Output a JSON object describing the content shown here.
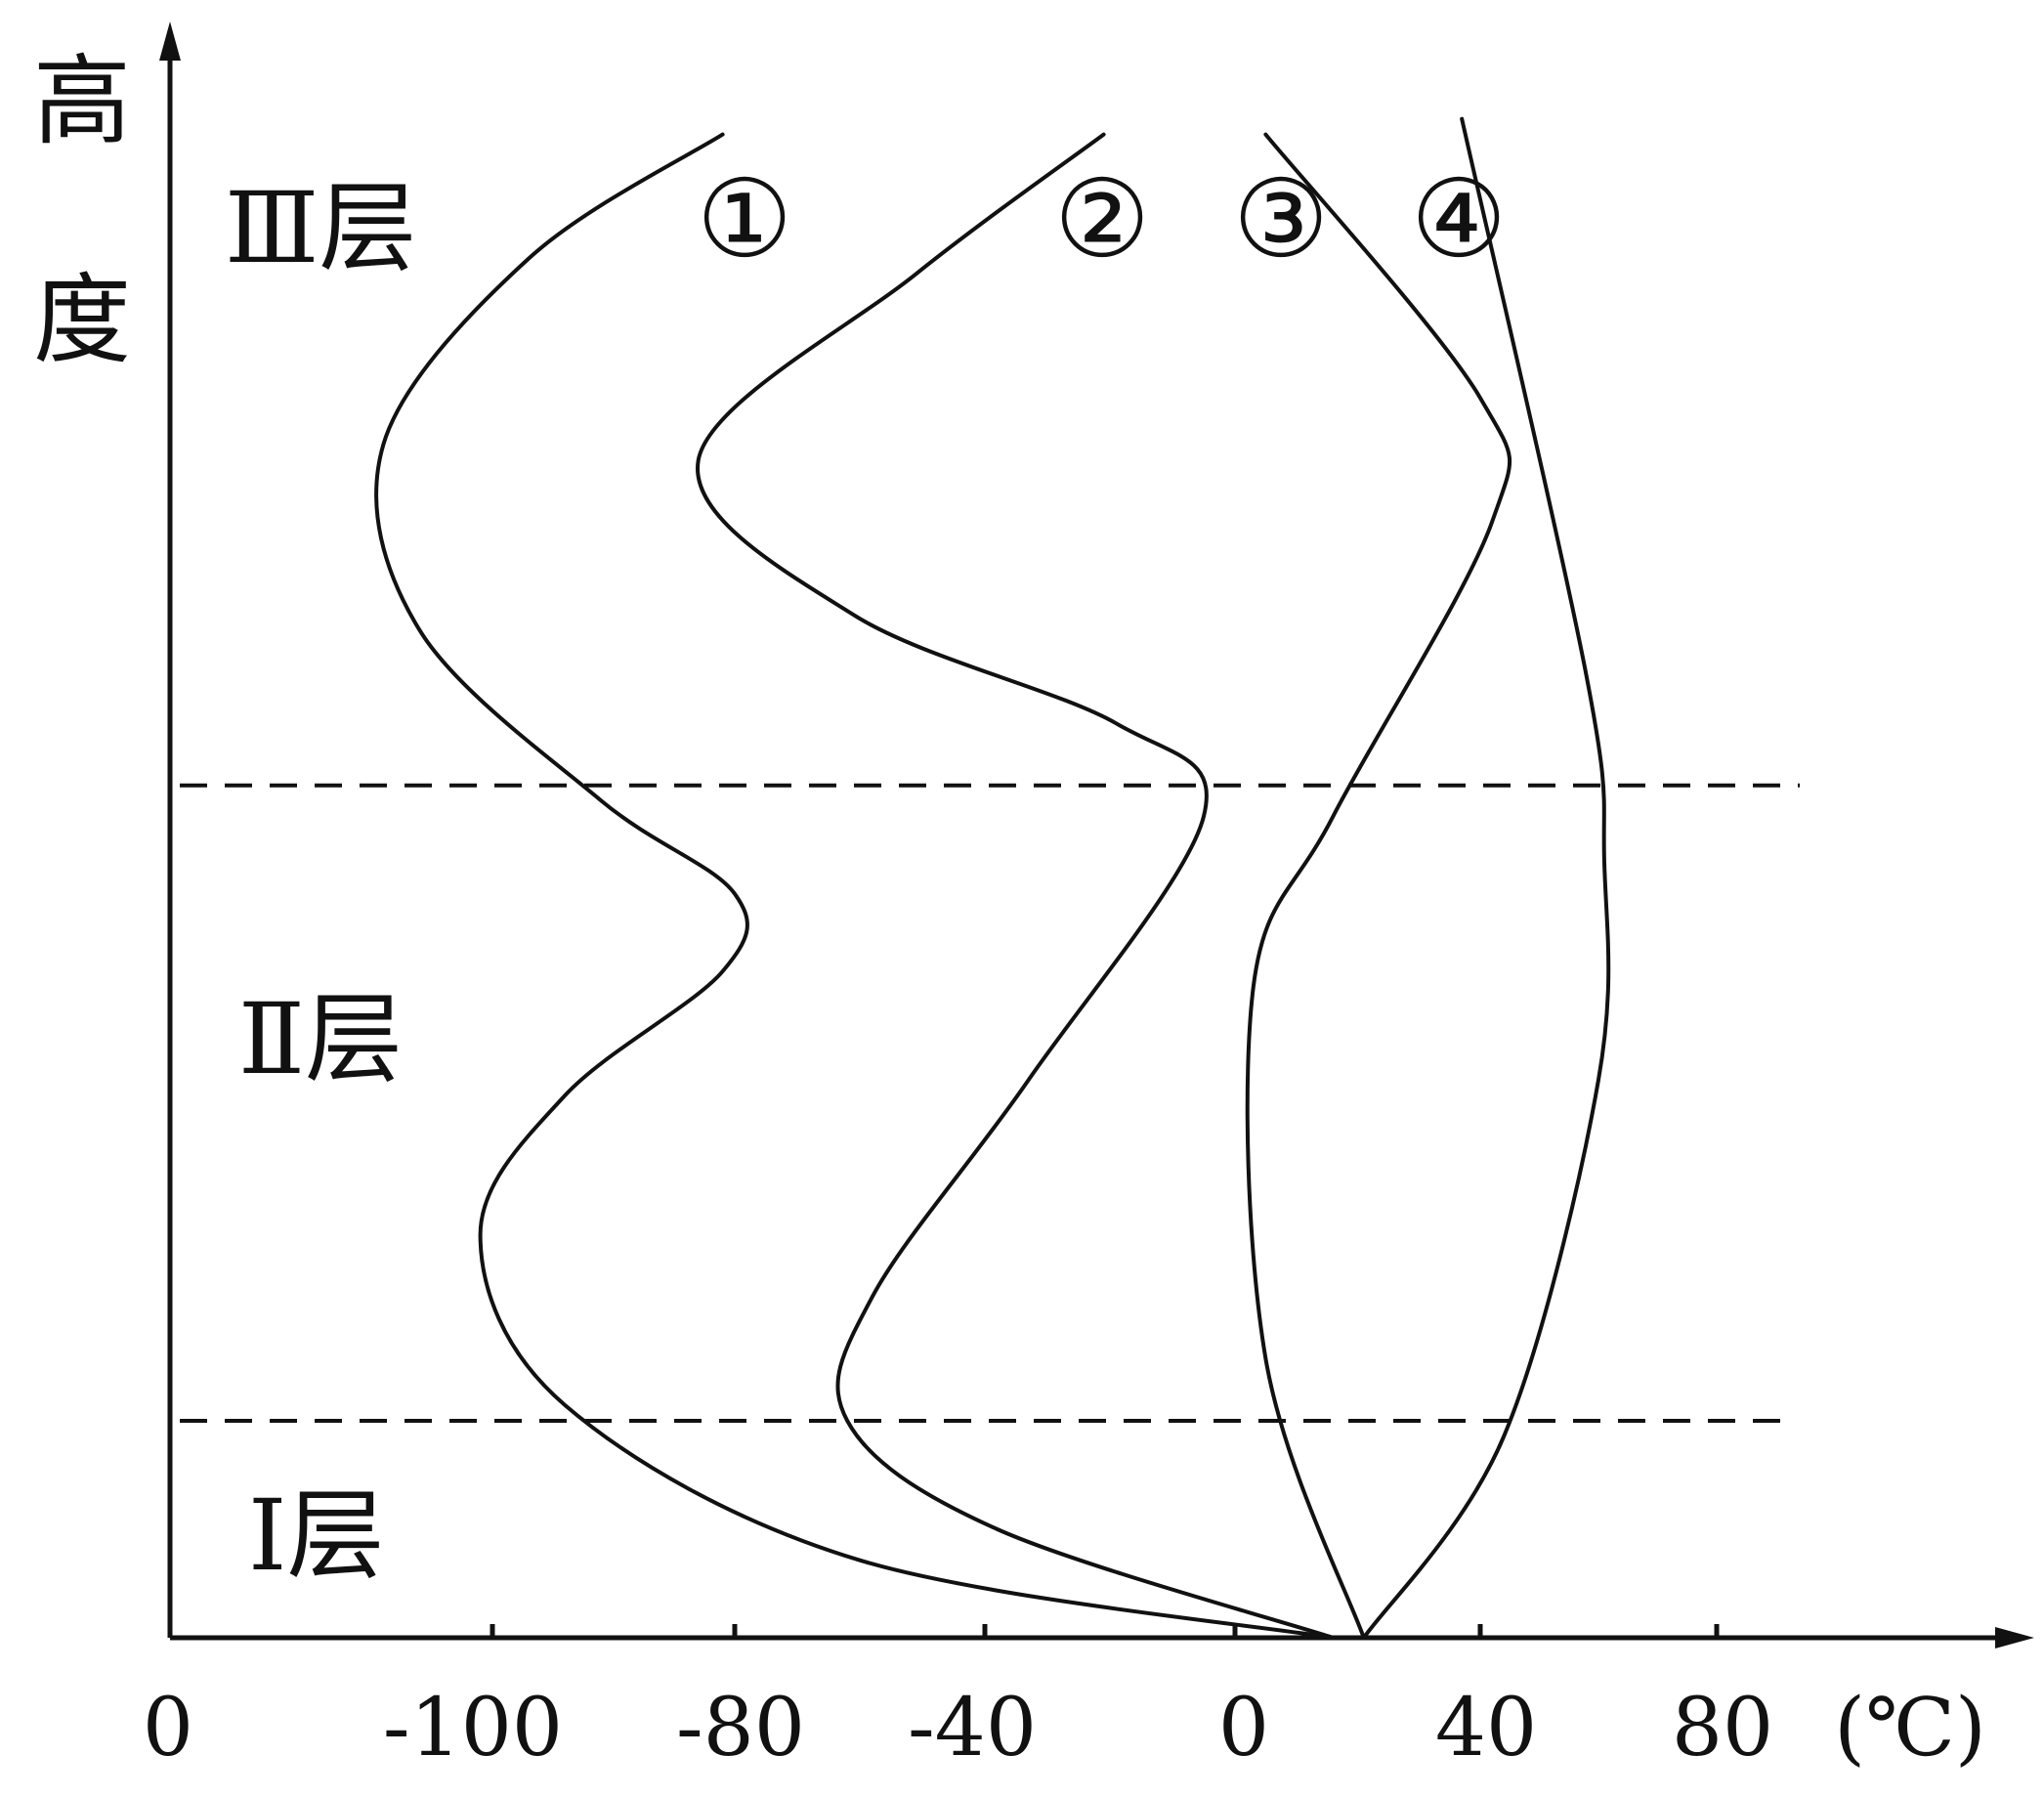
{
  "chart_data": {
    "type": "line",
    "ylabel": "高度",
    "xunit": "(℃)",
    "x_ticks": [
      "0",
      "-100",
      "-80",
      "-40",
      "0",
      "40",
      "80"
    ],
    "layers": [
      "Ⅲ层",
      "Ⅱ层",
      "Ⅰ层"
    ],
    "series_labels": [
      "①",
      "②",
      "③",
      "④"
    ],
    "series": [
      {
        "name": "①",
        "points": [
          {
            "x": 16,
            "y": 0.0
          },
          {
            "x": -60,
            "y": 0.05
          },
          {
            "x": -94,
            "y": 0.15
          },
          {
            "x": -101,
            "y": 0.26
          },
          {
            "x": -94,
            "y": 0.35
          },
          {
            "x": -81,
            "y": 0.43
          },
          {
            "x": -80,
            "y": 0.48
          },
          {
            "x": -91,
            "y": 0.54
          },
          {
            "x": -106,
            "y": 0.65
          },
          {
            "x": -109,
            "y": 0.77
          },
          {
            "x": -97,
            "y": 0.89
          },
          {
            "x": -81,
            "y": 0.97
          }
        ]
      },
      {
        "name": "②",
        "points": [
          {
            "x": 16,
            "y": 0.0
          },
          {
            "x": -38,
            "y": 0.07
          },
          {
            "x": -62,
            "y": 0.14
          },
          {
            "x": -58,
            "y": 0.22
          },
          {
            "x": -33,
            "y": 0.36
          },
          {
            "x": -5,
            "y": 0.53
          },
          {
            "x": -19,
            "y": 0.59
          },
          {
            "x": -61,
            "y": 0.66
          },
          {
            "x": -83,
            "y": 0.76
          },
          {
            "x": -51,
            "y": 0.88
          },
          {
            "x": -21,
            "y": 0.97
          }
        ]
      },
      {
        "name": "③",
        "points": [
          {
            "x": 21,
            "y": 0.0
          },
          {
            "x": 5,
            "y": 0.18
          },
          {
            "x": 3,
            "y": 0.42
          },
          {
            "x": 16,
            "y": 0.53
          },
          {
            "x": 42,
            "y": 0.72
          },
          {
            "x": 40,
            "y": 0.8
          },
          {
            "x": 5,
            "y": 0.97
          }
        ]
      },
      {
        "name": "④",
        "points": [
          {
            "x": 21,
            "y": 0.0
          },
          {
            "x": 44,
            "y": 0.13
          },
          {
            "x": 60,
            "y": 0.36
          },
          {
            "x": 61,
            "y": 0.5
          },
          {
            "x": 58,
            "y": 0.62
          },
          {
            "x": 37,
            "y": 0.98
          }
        ]
      }
    ],
    "layer_boundaries": [
      0.14,
      0.55
    ],
    "grid": false
  }
}
